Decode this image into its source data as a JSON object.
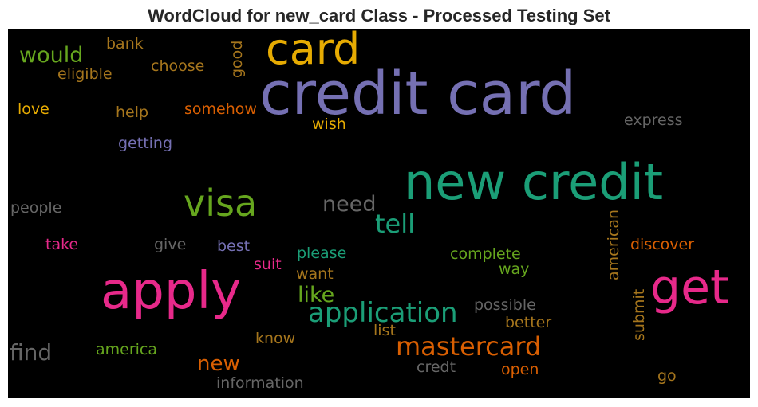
{
  "chart_data": {
    "type": "wordcloud",
    "title": "WordCloud for new_card Class - Processed Testing Set",
    "background": "#000000",
    "words": [
      {
        "text": "credit card",
        "color": "#7570b3"
      },
      {
        "text": "new credit",
        "color": "#1b9e77"
      },
      {
        "text": "apply",
        "color": "#e7298a"
      },
      {
        "text": "card",
        "color": "#e6ab02"
      },
      {
        "text": "get",
        "color": "#e7298a"
      },
      {
        "text": "visa",
        "color": "#66a61e"
      },
      {
        "text": "application",
        "color": "#1b9e77"
      },
      {
        "text": "mastercard",
        "color": "#d95f02"
      },
      {
        "text": "tell",
        "color": "#1b9e77"
      },
      {
        "text": "find",
        "color": "#666666"
      },
      {
        "text": "would",
        "color": "#66a61e"
      },
      {
        "text": "like",
        "color": "#66a61e"
      },
      {
        "text": "need",
        "color": "#666666"
      },
      {
        "text": "new",
        "color": "#d95f02"
      },
      {
        "text": "american",
        "color": "#a6761d"
      },
      {
        "text": "submit",
        "color": "#a6761d"
      },
      {
        "text": "good",
        "color": "#a6761d"
      },
      {
        "text": "people",
        "color": "#666666"
      },
      {
        "text": "eligible",
        "color": "#a6761d"
      },
      {
        "text": "choose",
        "color": "#a6761d"
      },
      {
        "text": "bank",
        "color": "#a6761d"
      },
      {
        "text": "love",
        "color": "#e6ab02"
      },
      {
        "text": "help",
        "color": "#a6761d"
      },
      {
        "text": "somehow",
        "color": "#d95f02"
      },
      {
        "text": "wish",
        "color": "#e6ab02"
      },
      {
        "text": "getting",
        "color": "#7570b3"
      },
      {
        "text": "express",
        "color": "#666666"
      },
      {
        "text": "take",
        "color": "#e7298a"
      },
      {
        "text": "give",
        "color": "#666666"
      },
      {
        "text": "best",
        "color": "#7570b3"
      },
      {
        "text": "suit",
        "color": "#e7298a"
      },
      {
        "text": "please",
        "color": "#1b9e77"
      },
      {
        "text": "want",
        "color": "#a6761d"
      },
      {
        "text": "complete",
        "color": "#66a61e"
      },
      {
        "text": "way",
        "color": "#66a61e"
      },
      {
        "text": "discover",
        "color": "#d95f02"
      },
      {
        "text": "possible",
        "color": "#666666"
      },
      {
        "text": "better",
        "color": "#a6761d"
      },
      {
        "text": "list",
        "color": "#a6761d"
      },
      {
        "text": "know",
        "color": "#a6761d"
      },
      {
        "text": "america",
        "color": "#66a61e"
      },
      {
        "text": "credt",
        "color": "#666666"
      },
      {
        "text": "open",
        "color": "#d95f02"
      },
      {
        "text": "information",
        "color": "#666666"
      },
      {
        "text": "go",
        "color": "#a6761d"
      }
    ]
  }
}
